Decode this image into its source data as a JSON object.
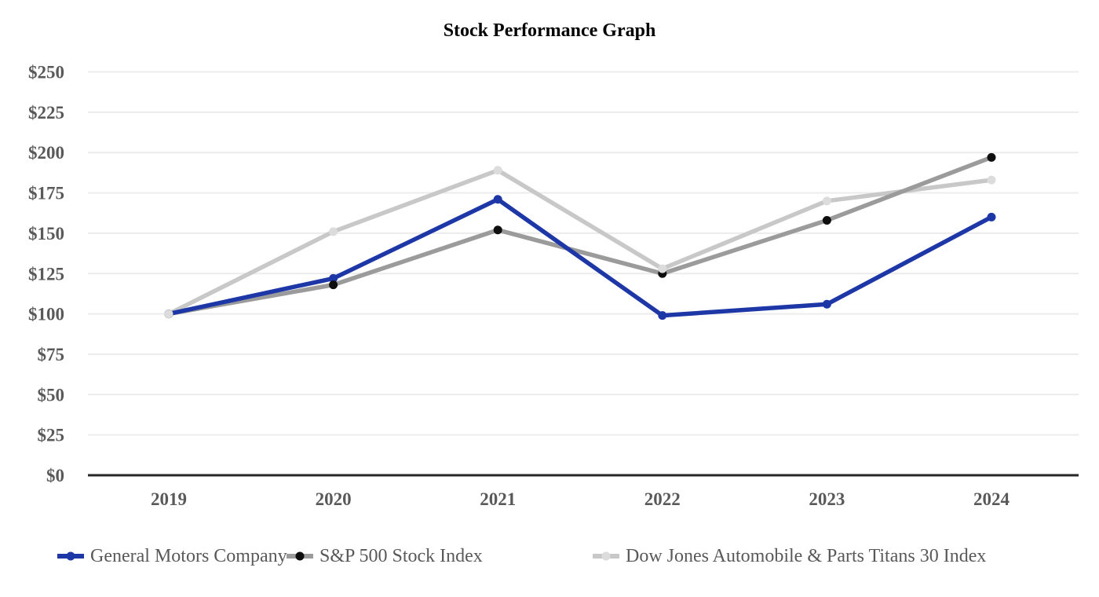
{
  "title": "Stock Performance Graph",
  "chart_data": {
    "type": "line",
    "title": "Stock Performance Graph",
    "categories": [
      "2019",
      "2020",
      "2021",
      "2022",
      "2023",
      "2024"
    ],
    "series": [
      {
        "name": "General Motors Company",
        "values": [
          100,
          122,
          171,
          99,
          106,
          160
        ],
        "line_color": "#1E37A6",
        "marker_color": "#1E37A6"
      },
      {
        "name": "S&P 500 Stock Index",
        "values": [
          100,
          118,
          152,
          125,
          158,
          197
        ],
        "line_color": "#9B9B9B",
        "marker_color": "#0E0E0E"
      },
      {
        "name": "Dow Jones Automobile & Parts Titans 30 Index",
        "values": [
          100,
          151,
          189,
          128,
          170,
          183
        ],
        "line_color": "#C8C8C8",
        "marker_color": "#DCDCDC"
      }
    ],
    "ylim": [
      0,
      250
    ],
    "ytick_step": 25,
    "ytick_prefix": "$",
    "ytick_labels": [
      "$0",
      "$25",
      "$50",
      "$75",
      "$100",
      "$125",
      "$150",
      "$175",
      "$200",
      "$225",
      "$250"
    ],
    "grid": true,
    "legend_position": "bottom"
  },
  "colors": {
    "grid": "#ECECEC",
    "axis": "#262626",
    "tick_label": "#595959",
    "legend_text": "#595959",
    "title_text": "#000000"
  },
  "legend": {
    "items": [
      {
        "label": "General Motors Company"
      },
      {
        "label": "S&P 500 Stock Index"
      },
      {
        "label": "Dow Jones Automobile & Parts Titans 30 Index"
      }
    ]
  }
}
